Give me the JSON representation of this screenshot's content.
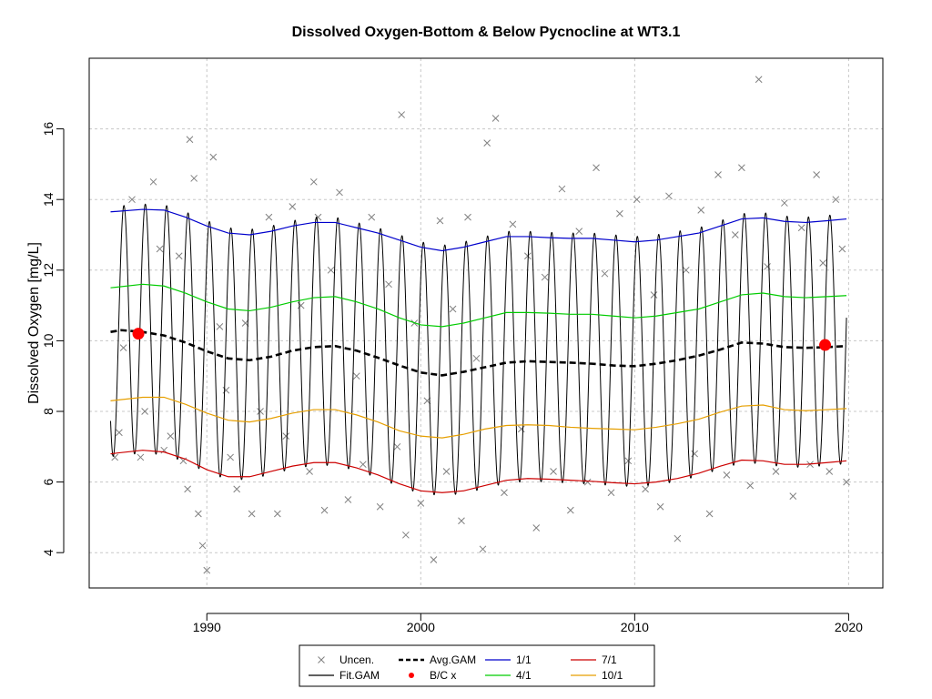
{
  "chart_data": {
    "type": "line",
    "title": "Dissolved Oxygen-Bottom & Below Pycnocline at WT3.1",
    "xlabel": "",
    "ylabel": "Dissolved Oxygen [mg/L]",
    "xlim": [
      1984.5,
      2021.6
    ],
    "ylim": [
      3.0,
      18.0
    ],
    "x_ticks": [
      1990,
      2000,
      2010,
      2020
    ],
    "y_ticks": [
      4,
      6,
      8,
      10,
      12,
      14,
      16
    ],
    "grid": true,
    "legend_position": "bottom",
    "legend": [
      {
        "label": "Uncen.",
        "kind": "cross",
        "color": "#808080"
      },
      {
        "label": "Fit.GAM",
        "kind": "line",
        "color": "#000000"
      },
      {
        "label": "Avg.GAM",
        "kind": "dashed",
        "color": "#000000"
      },
      {
        "label": "B/C x",
        "kind": "dot",
        "color": "#ff0000"
      },
      {
        "label": "1/1",
        "kind": "line",
        "color": "#0000cc"
      },
      {
        "label": "4/1",
        "kind": "line",
        "color": "#00cc00"
      },
      {
        "label": "7/1",
        "kind": "line",
        "color": "#cc0000"
      },
      {
        "label": "10/1",
        "kind": "line",
        "color": "#e69f00"
      }
    ],
    "series": [
      {
        "name": "1/1",
        "color": "#0000cc",
        "x": [
          1985.5,
          1987,
          1988,
          1989,
          1990,
          1991,
          1992,
          1993,
          1994,
          1995,
          1996,
          1997,
          1998,
          1999,
          2000,
          2001,
          2002,
          2003,
          2004,
          2005,
          2006,
          2007,
          2008,
          2009,
          2010,
          2011,
          2012,
          2013,
          2014,
          2015,
          2016,
          2017,
          2018,
          2019,
          2019.9
        ],
        "y": [
          13.65,
          13.72,
          13.7,
          13.5,
          13.25,
          13.05,
          13.0,
          13.1,
          13.25,
          13.35,
          13.35,
          13.2,
          13.05,
          12.85,
          12.65,
          12.55,
          12.65,
          12.8,
          12.95,
          12.95,
          12.92,
          12.9,
          12.9,
          12.85,
          12.8,
          12.85,
          12.95,
          13.05,
          13.25,
          13.45,
          13.48,
          13.38,
          13.35,
          13.4,
          13.45
        ]
      },
      {
        "name": "4/1",
        "color": "#00cc00",
        "x": [
          1985.5,
          1987,
          1988,
          1989,
          1990,
          1991,
          1992,
          1993,
          1994,
          1995,
          1996,
          1997,
          1998,
          1999,
          2000,
          2001,
          2002,
          2003,
          2004,
          2005,
          2006,
          2007,
          2008,
          2009,
          2010,
          2011,
          2012,
          2013,
          2014,
          2015,
          2016,
          2017,
          2018,
          2019,
          2019.9
        ],
        "y": [
          11.5,
          11.6,
          11.55,
          11.35,
          11.1,
          10.9,
          10.85,
          10.95,
          11.1,
          11.22,
          11.25,
          11.1,
          10.9,
          10.65,
          10.45,
          10.4,
          10.5,
          10.65,
          10.8,
          10.8,
          10.78,
          10.75,
          10.75,
          10.7,
          10.65,
          10.7,
          10.8,
          10.9,
          11.1,
          11.3,
          11.35,
          11.25,
          11.22,
          11.25,
          11.28
        ]
      },
      {
        "name": "10/1",
        "color": "#e69f00",
        "x": [
          1985.5,
          1987,
          1988,
          1989,
          1990,
          1991,
          1992,
          1993,
          1994,
          1995,
          1996,
          1997,
          1998,
          1999,
          2000,
          2001,
          2002,
          2003,
          2004,
          2005,
          2006,
          2007,
          2008,
          2009,
          2010,
          2011,
          2012,
          2013,
          2014,
          2015,
          2016,
          2017,
          2018,
          2019,
          2019.9
        ],
        "y": [
          8.3,
          8.4,
          8.4,
          8.2,
          7.95,
          7.75,
          7.7,
          7.8,
          7.95,
          8.05,
          8.05,
          7.9,
          7.7,
          7.45,
          7.3,
          7.25,
          7.35,
          7.5,
          7.6,
          7.62,
          7.6,
          7.55,
          7.52,
          7.5,
          7.48,
          7.55,
          7.65,
          7.78,
          7.98,
          8.15,
          8.18,
          8.05,
          8.02,
          8.05,
          8.08
        ]
      },
      {
        "name": "7/1",
        "color": "#cc0000",
        "x": [
          1985.5,
          1987,
          1988,
          1989,
          1990,
          1991,
          1992,
          1993,
          1994,
          1995,
          1996,
          1997,
          1998,
          1999,
          2000,
          2001,
          2002,
          2003,
          2004,
          2005,
          2006,
          2007,
          2008,
          2009,
          2010,
          2011,
          2012,
          2013,
          2014,
          2015,
          2016,
          2017,
          2018,
          2019,
          2019.9
        ],
        "y": [
          6.8,
          6.9,
          6.85,
          6.65,
          6.35,
          6.15,
          6.15,
          6.3,
          6.45,
          6.55,
          6.55,
          6.4,
          6.2,
          5.95,
          5.75,
          5.7,
          5.75,
          5.9,
          6.05,
          6.1,
          6.08,
          6.05,
          6.02,
          5.98,
          5.95,
          6.0,
          6.1,
          6.25,
          6.45,
          6.62,
          6.6,
          6.5,
          6.5,
          6.55,
          6.6
        ]
      },
      {
        "name": "Avg.GAM",
        "color": "#000000",
        "x": [
          1985.5,
          1986,
          1987,
          1988,
          1989,
          1990,
          1991,
          1992,
          1993,
          1994,
          1995,
          1996,
          1997,
          1998,
          1999,
          2000,
          2001,
          2002,
          2003,
          2004,
          2005,
          2006,
          2007,
          2008,
          2009,
          2010,
          2011,
          2012,
          2013,
          2014,
          2015,
          2016,
          2017,
          2018,
          2019,
          2019.9
        ],
        "y": [
          10.25,
          10.3,
          10.25,
          10.15,
          9.95,
          9.7,
          9.5,
          9.45,
          9.55,
          9.72,
          9.82,
          9.85,
          9.72,
          9.52,
          9.3,
          9.1,
          9.02,
          9.12,
          9.25,
          9.38,
          9.42,
          9.4,
          9.38,
          9.35,
          9.3,
          9.28,
          9.35,
          9.45,
          9.58,
          9.75,
          9.95,
          9.92,
          9.82,
          9.8,
          9.82,
          9.85
        ]
      },
      {
        "name": "B/C x",
        "color": "#ff0000",
        "x": [
          1986.8,
          2018.9
        ],
        "y": [
          10.2,
          9.88
        ]
      }
    ],
    "fit_gam": {
      "name": "Fit.GAM",
      "color": "#000000",
      "peak_day_of_year": 45
    },
    "uncensored_points": {
      "name": "Uncen.",
      "color": "#808080",
      "x": [
        1985.7,
        1985.9,
        1986.1,
        1986.5,
        1986.9,
        1987.1,
        1987.5,
        1987.8,
        1988.0,
        1988.3,
        1988.7,
        1988.9,
        1989.1,
        1989.2,
        1989.4,
        1989.6,
        1989.8,
        1990.0,
        1990.3,
        1990.6,
        1990.9,
        1991.1,
        1991.4,
        1991.8,
        1992.1,
        1992.5,
        1992.9,
        1993.3,
        1993.7,
        1994.0,
        1994.4,
        1994.8,
        1995.0,
        1995.2,
        1995.5,
        1995.8,
        1996.2,
        1996.6,
        1997.0,
        1997.3,
        1997.7,
        1998.1,
        1998.5,
        1998.9,
        1999.1,
        1999.3,
        1999.7,
        2000.0,
        2000.3,
        2000.6,
        2000.9,
        2001.2,
        2001.5,
        2001.9,
        2002.2,
        2002.6,
        2002.9,
        2003.1,
        2003.5,
        2003.9,
        2004.3,
        2004.7,
        2005.0,
        2005.4,
        2005.8,
        2006.2,
        2006.6,
        2007.0,
        2007.4,
        2007.8,
        2008.2,
        2008.6,
        2008.9,
        2009.3,
        2009.7,
        2010.1,
        2010.5,
        2010.9,
        2011.2,
        2011.6,
        2012.0,
        2012.4,
        2012.8,
        2013.1,
        2013.5,
        2013.9,
        2014.3,
        2014.7,
        2015.0,
        2015.4,
        2015.8,
        2016.2,
        2016.6,
        2017.0,
        2017.4,
        2017.8,
        2018.2,
        2018.5,
        2018.8,
        2019.1,
        2019.4,
        2019.7,
        2019.9
      ],
      "y": [
        6.7,
        7.4,
        9.8,
        14.0,
        6.7,
        8.0,
        14.5,
        12.6,
        6.9,
        7.3,
        12.4,
        6.6,
        5.8,
        15.7,
        14.6,
        5.1,
        4.2,
        3.5,
        15.2,
        10.4,
        8.6,
        6.7,
        5.8,
        10.5,
        5.1,
        8.0,
        13.5,
        5.1,
        7.3,
        13.8,
        11.0,
        6.3,
        14.5,
        13.5,
        5.2,
        12.0,
        14.2,
        5.5,
        9.0,
        6.5,
        13.5,
        5.3,
        11.6,
        7.0,
        16.4,
        4.5,
        10.5,
        5.4,
        8.3,
        3.8,
        13.4,
        6.3,
        10.9,
        4.9,
        13.5,
        9.5,
        4.1,
        15.6,
        16.3,
        5.7,
        13.3,
        7.5,
        12.4,
        4.7,
        11.8,
        6.3,
        14.3,
        5.2,
        13.1,
        6.0,
        14.9,
        11.9,
        5.7,
        13.6,
        6.6,
        14.0,
        5.8,
        11.3,
        5.3,
        14.1,
        4.4,
        12.0,
        6.8,
        13.7,
        5.1,
        14.7,
        6.2,
        13.0,
        14.9,
        5.9,
        17.4,
        12.1,
        6.3,
        13.9,
        5.6,
        13.2,
        6.5,
        14.7,
        12.2,
        6.3,
        14.0,
        12.6,
        6.0
      ]
    }
  }
}
